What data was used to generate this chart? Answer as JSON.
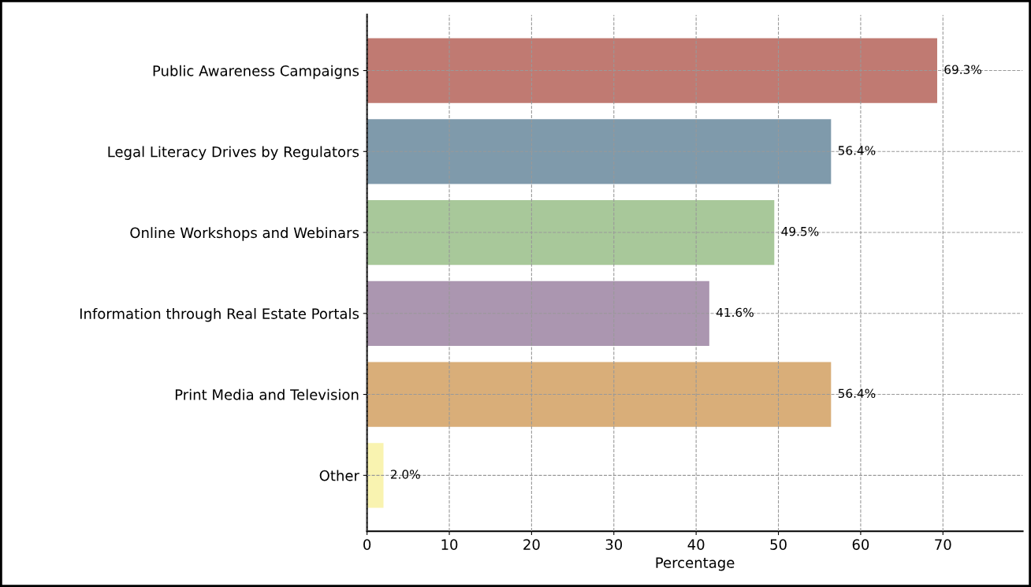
{
  "chart_data": {
    "type": "bar",
    "orientation": "horizontal",
    "xlabel": "Percentage",
    "categories": [
      "Public Awareness Campaigns",
      "Legal Literacy Drives by Regulators",
      "Online Workshops and Webinars",
      "Information through Real Estate Portals",
      "Print Media and Television",
      "Other"
    ],
    "values": [
      69.3,
      56.4,
      49.5,
      41.6,
      56.4,
      2.0
    ],
    "colors": [
      "#c07a72",
      "#7f9aab",
      "#a8c89a",
      "#ab96b0",
      "#d9ae79",
      "#f9f3b0"
    ],
    "value_labels": [
      "69.3%",
      "56.4%",
      "49.5%",
      "41.6%",
      "56.4%",
      "2.0%"
    ],
    "xlim": [
      0,
      79.7
    ],
    "xticks": [
      0,
      10,
      20,
      30,
      40,
      50,
      60,
      70
    ],
    "grid": true,
    "line_style": "dashed"
  }
}
